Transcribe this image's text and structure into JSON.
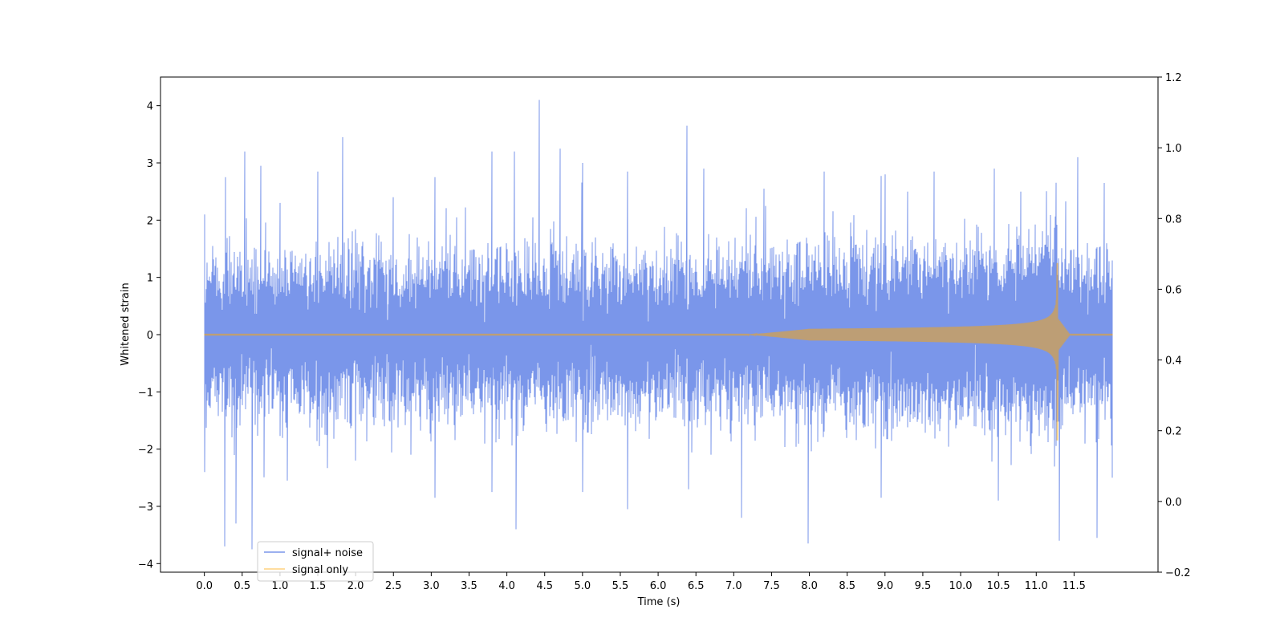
{
  "chart_data": {
    "type": "line",
    "title": "",
    "xlabel": "Time (s)",
    "ylabel": "Whitened strain",
    "y2label": "",
    "xlim": [
      -0.58,
      12.61
    ],
    "ylim": [
      -4.15,
      4.5
    ],
    "y2lim": [
      -0.2,
      1.2
    ],
    "x_ticks": [
      0.0,
      0.5,
      1.0,
      1.5,
      2.0,
      2.5,
      3.0,
      3.5,
      4.0,
      4.5,
      5.0,
      5.5,
      6.0,
      6.5,
      7.0,
      7.5,
      8.0,
      8.5,
      9.0,
      9.5,
      10.0,
      10.5,
      11.0,
      11.5
    ],
    "x_tick_labels": [
      "0.0",
      "0.5",
      "1.0",
      "1.5",
      "2.0",
      "2.5",
      "3.0",
      "3.5",
      "4.0",
      "4.5",
      "5.0",
      "5.5",
      "6.0",
      "6.5",
      "7.0",
      "7.5",
      "8.0",
      "8.5",
      "9.0",
      "9.5",
      "10.0",
      "10.5",
      "11.0",
      "11.5"
    ],
    "y_ticks": [
      -4,
      -3,
      -2,
      -1,
      0,
      1,
      2,
      3,
      4
    ],
    "y_tick_labels": [
      "−4",
      "−3",
      "−2",
      "−1",
      "0",
      "1",
      "2",
      "3",
      "4"
    ],
    "y2_ticks": [
      -0.2,
      0.0,
      0.2,
      0.4,
      0.6,
      0.8,
      1.0,
      1.2
    ],
    "y2_tick_labels": [
      "−0.2",
      "0.0",
      "0.2",
      "0.4",
      "0.6",
      "0.8",
      "1.0",
      "1.2"
    ],
    "grid": false,
    "legend": {
      "placement": "lower-left",
      "entries": [
        "signal+ noise",
        "signal only"
      ]
    },
    "series": [
      {
        "name": "signal+ noise",
        "color": "#4169e1",
        "opacity": 0.7,
        "x_range": [
          0.0,
          12.0
        ],
        "envelope_note_values": {
          "typical_max": 1.4,
          "typical_min": -1.4,
          "max_peak": {
            "x": 4.43,
            "y": 4.1
          },
          "min_peak": {
            "x": 0.63,
            "y": -3.75
          }
        },
        "peaks": [
          {
            "x": 0.0,
            "y": 2.1
          },
          {
            "x": 0.28,
            "y": 2.75
          },
          {
            "x": 0.53,
            "y": 3.2
          },
          {
            "x": 0.75,
            "y": 2.95
          },
          {
            "x": 1.0,
            "y": 2.3
          },
          {
            "x": 1.5,
            "y": 2.85
          },
          {
            "x": 1.83,
            "y": 3.45
          },
          {
            "x": 2.5,
            "y": 2.4
          },
          {
            "x": 3.05,
            "y": 2.75
          },
          {
            "x": 3.8,
            "y": 3.2
          },
          {
            "x": 4.1,
            "y": 3.2
          },
          {
            "x": 4.43,
            "y": 4.1
          },
          {
            "x": 4.7,
            "y": 3.25
          },
          {
            "x": 5.0,
            "y": 3.0
          },
          {
            "x": 5.6,
            "y": 2.85
          },
          {
            "x": 6.38,
            "y": 3.65
          },
          {
            "x": 6.6,
            "y": 2.9
          },
          {
            "x": 7.4,
            "y": 2.55
          },
          {
            "x": 8.2,
            "y": 2.85
          },
          {
            "x": 9.0,
            "y": 2.8
          },
          {
            "x": 9.3,
            "y": 2.5
          },
          {
            "x": 9.65,
            "y": 2.85
          },
          {
            "x": 10.45,
            "y": 2.9
          },
          {
            "x": 10.8,
            "y": 2.5
          },
          {
            "x": 11.55,
            "y": 3.1
          },
          {
            "x": 11.9,
            "y": 2.65
          }
        ],
        "troughs": [
          {
            "x": 0.0,
            "y": -2.4
          },
          {
            "x": 0.27,
            "y": -3.7
          },
          {
            "x": 0.42,
            "y": -3.3
          },
          {
            "x": 0.63,
            "y": -3.75
          },
          {
            "x": 1.1,
            "y": -2.55
          },
          {
            "x": 2.0,
            "y": -2.2
          },
          {
            "x": 3.05,
            "y": -2.85
          },
          {
            "x": 3.8,
            "y": -2.75
          },
          {
            "x": 4.12,
            "y": -3.4
          },
          {
            "x": 5.0,
            "y": -2.75
          },
          {
            "x": 5.6,
            "y": -3.05
          },
          {
            "x": 6.4,
            "y": -2.7
          },
          {
            "x": 7.1,
            "y": -3.2
          },
          {
            "x": 7.98,
            "y": -3.65
          },
          {
            "x": 8.95,
            "y": -2.85
          },
          {
            "x": 10.5,
            "y": -2.9
          },
          {
            "x": 11.3,
            "y": -3.6
          },
          {
            "x": 11.8,
            "y": -3.55
          },
          {
            "x": 12.0,
            "y": -2.5
          }
        ]
      },
      {
        "name": "signal only",
        "color": "#ffa500",
        "opacity": 0.5,
        "x_range": [
          0.0,
          12.0
        ],
        "chirp": {
          "onset_x": 7.2,
          "merger_x": 11.28,
          "peak_max": 1.25,
          "peak_min": -1.85,
          "post_merger_zero_from_x": 11.45
        }
      }
    ]
  }
}
